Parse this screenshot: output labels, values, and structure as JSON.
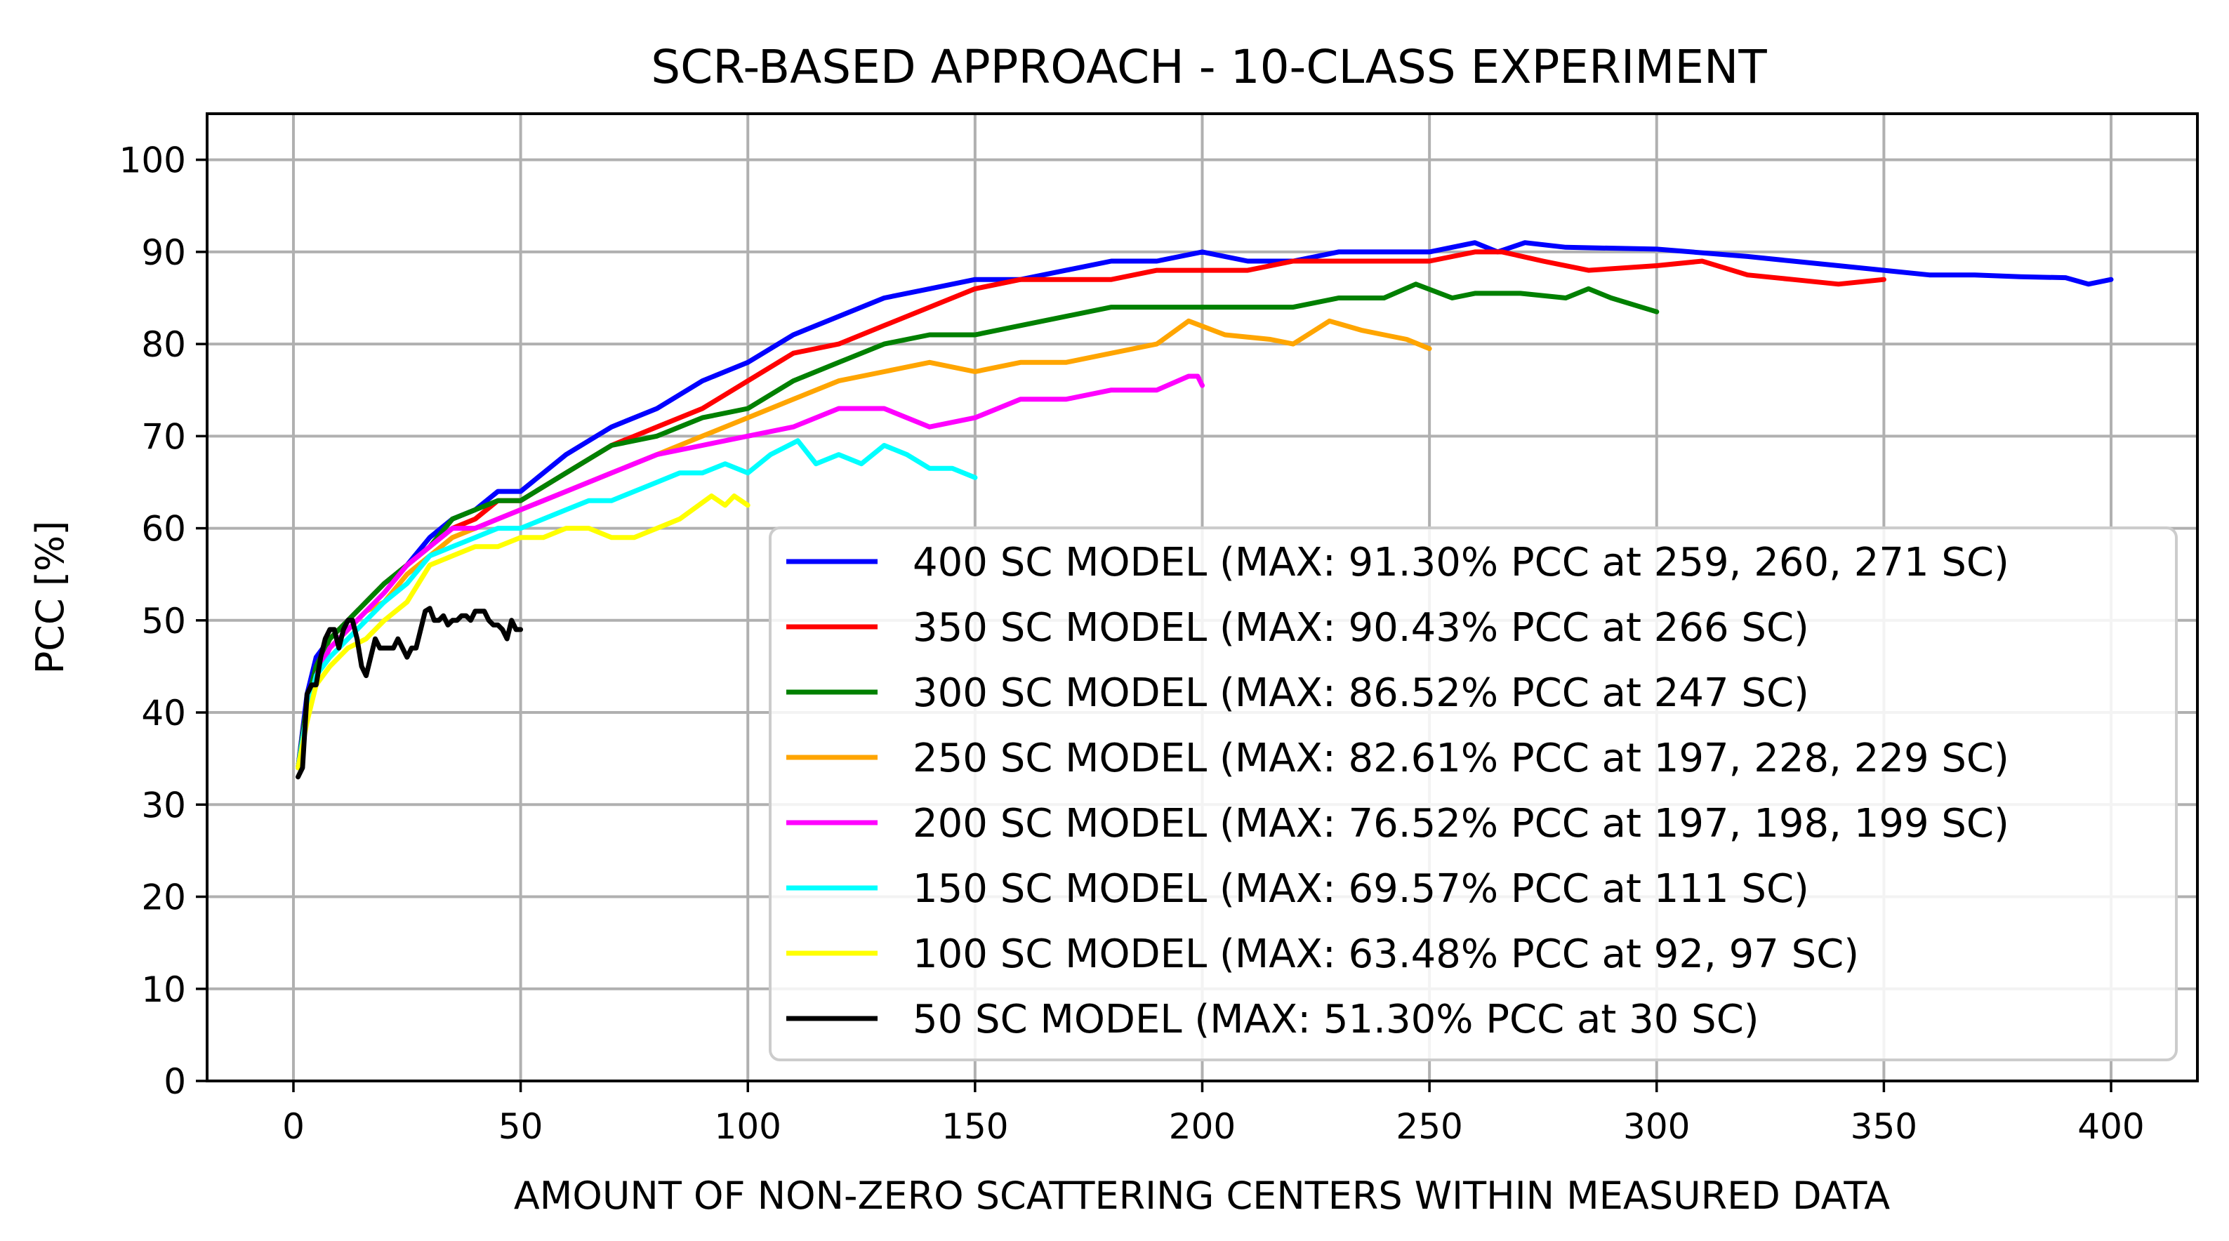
{
  "chart_data": {
    "type": "line",
    "title": "SCR-BASED APPROACH - 10-CLASS EXPERIMENT",
    "xlabel": "AMOUNT OF NON-ZERO SCATTERING CENTERS WITHIN MEASURED DATA",
    "ylabel": "PCC [%]",
    "xlim": [
      -19,
      419
    ],
    "ylim": [
      0,
      105
    ],
    "xticks": [
      0,
      50,
      100,
      150,
      200,
      250,
      300,
      350,
      400
    ],
    "yticks": [
      0,
      10,
      20,
      30,
      40,
      50,
      60,
      70,
      80,
      90,
      100
    ],
    "grid": true,
    "legend_position": "lower-right",
    "series": [
      {
        "name": "400 SC MODEL (MAX: 91.30% PCC at 259, 260, 271 SC)",
        "color": "#0000ff",
        "x": [
          1,
          3,
          5,
          8,
          12,
          16,
          20,
          25,
          30,
          35,
          40,
          45,
          50,
          60,
          70,
          80,
          90,
          100,
          110,
          120,
          130,
          140,
          150,
          160,
          170,
          180,
          190,
          200,
          210,
          220,
          230,
          240,
          250,
          260,
          265,
          271,
          280,
          300,
          320,
          330,
          340,
          350,
          360,
          370,
          380,
          390,
          395,
          400
        ],
        "y": [
          34,
          42,
          46,
          48,
          50,
          52,
          54,
          56,
          59,
          61,
          62,
          64,
          64,
          68,
          71,
          73,
          76,
          78,
          81,
          83,
          85,
          86,
          87,
          87,
          88,
          89,
          89,
          90,
          89,
          89,
          90,
          90,
          90,
          91,
          90,
          91,
          90.5,
          90.3,
          89.5,
          89,
          88.5,
          88,
          87.5,
          87.5,
          87.3,
          87.2,
          86.5,
          87
        ]
      },
      {
        "name": "350 SC MODEL (MAX: 90.43% PCC at 266 SC)",
        "color": "#ff0000",
        "x": [
          1,
          3,
          5,
          8,
          12,
          16,
          20,
          25,
          30,
          35,
          40,
          45,
          50,
          60,
          70,
          80,
          90,
          100,
          110,
          120,
          130,
          140,
          150,
          160,
          170,
          180,
          190,
          200,
          210,
          220,
          230,
          240,
          250,
          260,
          266,
          275,
          285,
          300,
          310,
          320,
          330,
          340,
          350
        ],
        "y": [
          34,
          41,
          45,
          48,
          50,
          52,
          54,
          56,
          58,
          60,
          61,
          63,
          63,
          66,
          69,
          71,
          73,
          76,
          79,
          80,
          82,
          84,
          86,
          87,
          87,
          87,
          88,
          88,
          88,
          89,
          89,
          89,
          89,
          90,
          90,
          89,
          88,
          88.5,
          89,
          87.5,
          87,
          86.5,
          87
        ]
      },
      {
        "name": "300 SC MODEL (MAX: 86.52% PCC at 247 SC)",
        "color": "#008000",
        "x": [
          1,
          3,
          5,
          8,
          12,
          16,
          20,
          25,
          30,
          35,
          40,
          45,
          50,
          60,
          70,
          80,
          90,
          100,
          110,
          120,
          130,
          140,
          150,
          160,
          170,
          180,
          190,
          200,
          210,
          220,
          230,
          240,
          247,
          255,
          260,
          270,
          280,
          285,
          290,
          300
        ],
        "y": [
          34,
          41,
          45,
          48,
          50,
          52,
          54,
          56,
          58,
          61,
          62,
          63,
          63,
          66,
          69,
          70,
          72,
          73,
          76,
          78,
          80,
          81,
          81,
          82,
          83,
          84,
          84,
          84,
          84,
          84,
          85,
          85,
          86.5,
          85,
          85.5,
          85.5,
          85,
          86,
          85,
          83.5
        ]
      },
      {
        "name": "250 SC MODEL (MAX: 82.61% PCC at 197, 228, 229 SC)",
        "color": "#ffa500",
        "x": [
          1,
          3,
          5,
          8,
          12,
          16,
          20,
          25,
          30,
          35,
          40,
          45,
          50,
          60,
          70,
          80,
          90,
          100,
          110,
          120,
          130,
          140,
          150,
          160,
          170,
          180,
          190,
          197,
          205,
          215,
          220,
          228,
          235,
          240,
          245,
          250
        ],
        "y": [
          34,
          40,
          44,
          47,
          49,
          51,
          52,
          55,
          57,
          59,
          60,
          61,
          62,
          64,
          66,
          68,
          70,
          72,
          74,
          76,
          77,
          78,
          77,
          78,
          78,
          79,
          80,
          82.5,
          81,
          80.5,
          80,
          82.5,
          81.5,
          81,
          80.5,
          79.5
        ]
      },
      {
        "name": "200 SC MODEL (MAX: 76.52% PCC at 197, 198, 199 SC)",
        "color": "#ff00ff",
        "x": [
          1,
          3,
          5,
          8,
          12,
          16,
          20,
          25,
          30,
          35,
          40,
          45,
          50,
          60,
          70,
          80,
          90,
          100,
          110,
          120,
          130,
          140,
          150,
          160,
          170,
          180,
          190,
          197,
          199,
          200
        ],
        "y": [
          34,
          40,
          44,
          47,
          49,
          51,
          53,
          56,
          58,
          60,
          60,
          61,
          62,
          64,
          66,
          68,
          69,
          70,
          71,
          73,
          73,
          71,
          72,
          74,
          74,
          75,
          75,
          76.5,
          76.5,
          75.5
        ]
      },
      {
        "name": "150 SC MODEL (MAX: 69.57% PCC at 111 SC)",
        "color": "#00ffff",
        "x": [
          1,
          3,
          5,
          8,
          12,
          16,
          20,
          25,
          30,
          35,
          40,
          45,
          50,
          55,
          60,
          65,
          70,
          75,
          80,
          85,
          90,
          95,
          100,
          105,
          111,
          115,
          120,
          125,
          130,
          135,
          140,
          145,
          150
        ],
        "y": [
          34,
          40,
          44,
          46,
          48,
          50,
          52,
          54,
          57,
          58,
          59,
          60,
          60,
          61,
          62,
          63,
          63,
          64,
          65,
          66,
          66,
          67,
          66,
          68,
          69.5,
          67,
          68,
          67,
          69,
          68,
          66.5,
          66.5,
          65.5
        ]
      },
      {
        "name": "100 SC MODEL (MAX: 63.48% PCC at 92, 97 SC)",
        "color": "#ffff00",
        "x": [
          1,
          3,
          5,
          8,
          12,
          16,
          20,
          25,
          30,
          35,
          40,
          45,
          50,
          55,
          60,
          65,
          70,
          75,
          80,
          85,
          92,
          95,
          97,
          100
        ],
        "y": [
          34,
          39,
          43,
          45,
          47,
          48,
          50,
          52,
          56,
          57,
          58,
          58,
          59,
          59,
          60,
          60,
          59,
          59,
          60,
          61,
          63.5,
          62.5,
          63.5,
          62.5
        ]
      },
      {
        "name": "50 SC MODEL (MAX: 51.30% PCC at 30 SC)",
        "color": "#000000",
        "x": [
          1,
          2,
          3,
          4,
          5,
          6,
          7,
          8,
          9,
          10,
          11,
          12,
          13,
          14,
          15,
          16,
          17,
          18,
          19,
          20,
          21,
          22,
          23,
          24,
          25,
          26,
          27,
          28,
          29,
          30,
          31,
          32,
          33,
          34,
          35,
          36,
          37,
          38,
          39,
          40,
          41,
          42,
          43,
          44,
          45,
          46,
          47,
          48,
          49,
          50
        ],
        "y": [
          33,
          34,
          42,
          43,
          43,
          46,
          48,
          49,
          49,
          47,
          49,
          50,
          50,
          48,
          45,
          44,
          46,
          48,
          47,
          47,
          47,
          47,
          48,
          47,
          46,
          47,
          47,
          49,
          51,
          51.3,
          50,
          50,
          50.5,
          49.5,
          50,
          50,
          50.5,
          50.5,
          50,
          51,
          51,
          51,
          50,
          49.5,
          49.5,
          49,
          48,
          50,
          49,
          49
        ]
      }
    ]
  }
}
